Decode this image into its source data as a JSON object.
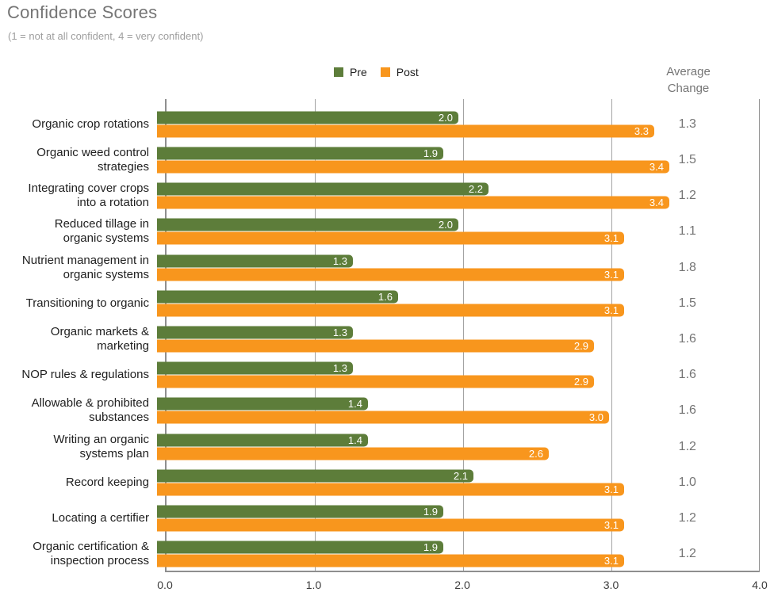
{
  "header": {
    "title": "Confidence Scores",
    "subtitle": "(1 = not at all confident, 4 = very confident)"
  },
  "legend": {
    "pre_label": "Pre",
    "post_label": "Post"
  },
  "avg_column": {
    "header": "Average\nChange"
  },
  "colors": {
    "pre_bar": "#5d7d3a",
    "post_bar": "#f8961d",
    "title_text": "#757575",
    "subtitle_text": "#9e9e9e",
    "axis_line": "#8f8f8f",
    "gridline": "#a3a3a3",
    "change_text": "#757575",
    "bar_value_text": "#ffffff"
  },
  "chart_data": {
    "type": "bar",
    "orientation": "horizontal",
    "title": "Confidence Scores",
    "subtitle": "(1 = not at all confident, 4 = very confident)",
    "xlim": [
      0,
      4
    ],
    "x_ticks": [
      "0.0",
      "1.0",
      "2.0",
      "3.0",
      "4.0"
    ],
    "grid": true,
    "legend_position": "top",
    "categories": [
      "Organic crop rotations",
      "Organic weed control\nstrategies",
      "Integrating cover crops\ninto a rotation",
      "Reduced tillage in\norganic systems",
      "Nutrient management in\norganic systems",
      "Transitioning to organic",
      "Organic markets &\nmarketing",
      "NOP rules & regulations",
      "Allowable & prohibited\nsubstances",
      "Writing an organic\nsystems plan",
      "Record keeping",
      "Locating a certifier",
      "Organic certification &\ninspection process"
    ],
    "series": [
      {
        "name": "Pre",
        "color": "#5d7d3a",
        "values": [
          2.0,
          1.9,
          2.2,
          2.0,
          1.3,
          1.6,
          1.3,
          1.3,
          1.4,
          1.4,
          2.1,
          1.9,
          1.9
        ]
      },
      {
        "name": "Post",
        "color": "#f8961d",
        "values": [
          3.3,
          3.4,
          3.4,
          3.1,
          3.1,
          3.1,
          2.9,
          2.9,
          3.0,
          2.6,
          3.1,
          3.1,
          3.1
        ]
      }
    ],
    "average_change": [
      1.3,
      1.5,
      1.2,
      1.1,
      1.8,
      1.5,
      1.6,
      1.6,
      1.6,
      1.2,
      1.0,
      1.2,
      1.2
    ]
  }
}
